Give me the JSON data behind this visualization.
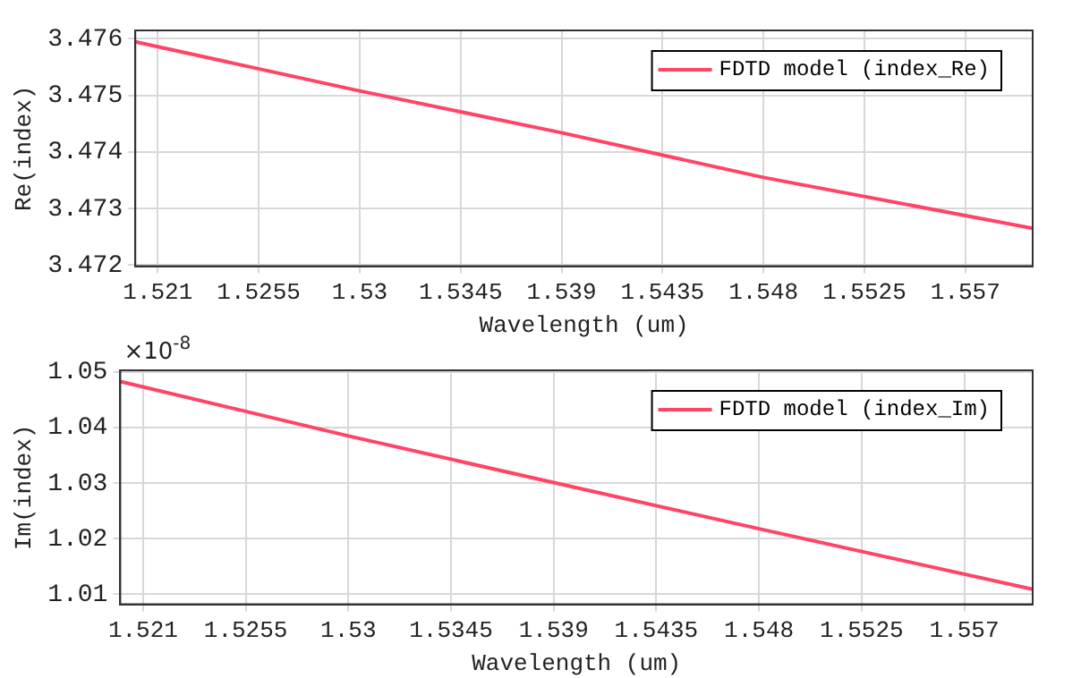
{
  "chart_data": [
    {
      "type": "line",
      "xlabel": "Wavelength (um)",
      "ylabel": "Re(index)",
      "x": [
        1.52,
        1.53,
        1.539,
        1.548,
        1.56
      ],
      "series": [
        {
          "name": "FDTD model (index_Re)",
          "color": "#ff4466",
          "values": [
            3.47595,
            3.47508,
            3.47434,
            3.47355,
            3.47265
          ]
        }
      ],
      "xlim": [
        1.52,
        1.56
      ],
      "xticks": [
        1.521,
        1.5255,
        1.53,
        1.5345,
        1.539,
        1.5435,
        1.548,
        1.5525,
        1.557
      ],
      "ylim": [
        3.47198,
        3.47615
      ],
      "yticks": [
        3.472,
        3.473,
        3.474,
        3.475,
        3.476
      ],
      "grid": true,
      "legend": "top right",
      "marker": "none",
      "line_style": "solid"
    },
    {
      "type": "line",
      "xlabel": "Wavelength (um)",
      "ylabel": "Im(index)",
      "annotations": [
        "×10$^{-8}$"
      ],
      "x": [
        1.52,
        1.53,
        1.539,
        1.548,
        1.56
      ],
      "series": [
        {
          "name": "FDTD model (index_Im)",
          "color": "#ff4466",
          "values": [
            1.0483,
            1.0385,
            1.0301,
            1.0218,
            1.0109
          ]
        }
      ],
      "xlim": [
        1.52,
        1.56
      ],
      "xticks": [
        1.521,
        1.5255,
        1.53,
        1.5345,
        1.539,
        1.5435,
        1.548,
        1.5525,
        1.557
      ],
      "ylim": [
        1.0082,
        1.0503
      ],
      "yticks": [
        1.01,
        1.02,
        1.03,
        1.04,
        1.05
      ],
      "grid": true,
      "legend": "top right",
      "marker": "none",
      "line_style": "solid"
    }
  ]
}
